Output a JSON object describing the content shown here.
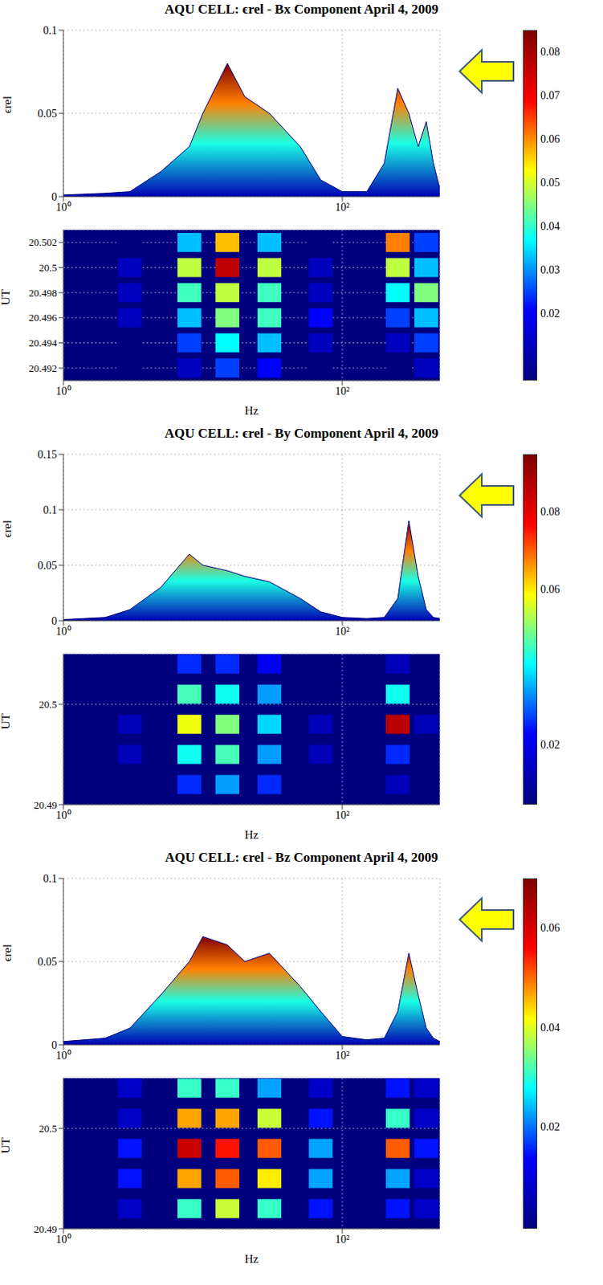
{
  "chart_data": [
    {
      "type": "area",
      "title": "AQU CELL: ϵrel - Bx Component April 4, 2009",
      "x_label": "Hz",
      "y_label": "ϵrel",
      "ut_label": "UT",
      "log": "x",
      "grid": true,
      "x": [
        1,
        2,
        3,
        5,
        8,
        10,
        15,
        20,
        30,
        50,
        70,
        100,
        150,
        200,
        250,
        300,
        350,
        400,
        450,
        500
      ],
      "values": [
        0.001,
        0.002,
        0.003,
        0.015,
        0.03,
        0.05,
        0.08,
        0.06,
        0.05,
        0.03,
        0.01,
        0.003,
        0.003,
        0.02,
        0.065,
        0.05,
        0.03,
        0.045,
        0.02,
        0.005
      ],
      "xlim": [
        1,
        500
      ],
      "xticks": [
        {
          "value": 1,
          "label": "10⁰"
        },
        {
          "value": 100,
          "label": "10²"
        }
      ],
      "ylim": [
        0,
        0.1
      ],
      "yticks": [
        0,
        0.05,
        0.1
      ],
      "hz": [
        3,
        8,
        15,
        30,
        70,
        250,
        400
      ],
      "ut": [
        20.492,
        20.494,
        20.496,
        20.498,
        20.5,
        20.502
      ],
      "cells": [
        [
          0.005,
          0.01,
          0.02,
          0.015,
          0.005,
          0.005,
          0.01
        ],
        [
          0.005,
          0.02,
          0.035,
          0.03,
          0.01,
          0.01,
          0.02
        ],
        [
          0.01,
          0.03,
          0.045,
          0.04,
          0.015,
          0.02,
          0.03
        ],
        [
          0.01,
          0.04,
          0.05,
          0.04,
          0.01,
          0.035,
          0.045
        ],
        [
          0.01,
          0.05,
          0.08,
          0.05,
          0.01,
          0.05,
          0.03
        ],
        [
          0.005,
          0.03,
          0.06,
          0.03,
          0.005,
          0.065,
          0.02
        ]
      ],
      "utlim": [
        20.491,
        20.503
      ],
      "utticks": [
        20.492,
        20.494,
        20.496,
        20.498,
        20.5,
        20.502
      ],
      "colorbar": {
        "range": [
          0.005,
          0.085
        ],
        "ticks": [
          0.02,
          0.03,
          0.04,
          0.05,
          0.06,
          0.07,
          0.08
        ]
      }
    },
    {
      "type": "area",
      "title": "AQU CELL: ϵrel - By Component April 4, 2009",
      "x_label": "Hz",
      "y_label": "ϵrel",
      "ut_label": "UT",
      "log": "x",
      "grid": true,
      "x": [
        1,
        2,
        3,
        5,
        8,
        10,
        15,
        20,
        30,
        50,
        70,
        100,
        150,
        200,
        250,
        300,
        350,
        400,
        450,
        500
      ],
      "values": [
        0.001,
        0.003,
        0.01,
        0.03,
        0.06,
        0.05,
        0.045,
        0.04,
        0.035,
        0.02,
        0.008,
        0.003,
        0.002,
        0.003,
        0.02,
        0.09,
        0.04,
        0.01,
        0.003,
        0.002
      ],
      "xlim": [
        1,
        500
      ],
      "xticks": [
        {
          "value": 1,
          "label": "10⁰"
        },
        {
          "value": 100,
          "label": "10²"
        }
      ],
      "ylim": [
        0,
        0.15
      ],
      "yticks": [
        0,
        0.05,
        0.1,
        0.15
      ],
      "hz": [
        3,
        8,
        15,
        30,
        70,
        250,
        400
      ],
      "ut": [
        20.492,
        20.495,
        20.498,
        20.501,
        20.504
      ],
      "cells": [
        [
          0.005,
          0.02,
          0.03,
          0.02,
          0.005,
          0.01,
          0.005
        ],
        [
          0.01,
          0.04,
          0.045,
          0.03,
          0.01,
          0.02,
          0.005
        ],
        [
          0.01,
          0.06,
          0.05,
          0.035,
          0.01,
          0.09,
          0.01
        ],
        [
          0.005,
          0.045,
          0.04,
          0.03,
          0.005,
          0.04,
          0.005
        ],
        [
          0.005,
          0.02,
          0.02,
          0.015,
          0.005,
          0.01,
          0.005
        ]
      ],
      "utlim": [
        20.49,
        20.505
      ],
      "utticks": [
        20.49,
        20.5
      ],
      "colorbar": {
        "range": [
          0.005,
          0.095
        ],
        "ticks": [
          0.02,
          0.06,
          0.08
        ]
      }
    },
    {
      "type": "area",
      "title": "AQU CELL: ϵrel - Bz Component April 4, 2009",
      "x_label": "Hz",
      "y_label": "ϵrel",
      "ut_label": "UT",
      "log": "x",
      "grid": true,
      "x": [
        1,
        2,
        3,
        5,
        8,
        10,
        15,
        20,
        30,
        50,
        70,
        100,
        150,
        200,
        250,
        300,
        350,
        400,
        450,
        500
      ],
      "values": [
        0.002,
        0.004,
        0.01,
        0.03,
        0.05,
        0.065,
        0.06,
        0.05,
        0.055,
        0.035,
        0.02,
        0.005,
        0.003,
        0.004,
        0.02,
        0.055,
        0.03,
        0.01,
        0.004,
        0.002
      ],
      "xlim": [
        1,
        500
      ],
      "xticks": [
        {
          "value": 1,
          "label": "10⁰"
        },
        {
          "value": 100,
          "label": "10²"
        }
      ],
      "ylim": [
        0,
        0.1
      ],
      "yticks": [
        0,
        0.05,
        0.1
      ],
      "hz": [
        3,
        8,
        15,
        30,
        70,
        250,
        400
      ],
      "ut": [
        20.492,
        20.495,
        20.498,
        20.501,
        20.504
      ],
      "cells": [
        [
          0.005,
          0.03,
          0.04,
          0.03,
          0.01,
          0.01,
          0.005
        ],
        [
          0.01,
          0.05,
          0.055,
          0.045,
          0.02,
          0.02,
          0.005
        ],
        [
          0.01,
          0.065,
          0.06,
          0.055,
          0.02,
          0.055,
          0.01
        ],
        [
          0.005,
          0.05,
          0.05,
          0.04,
          0.01,
          0.03,
          0.005
        ],
        [
          0.005,
          0.03,
          0.03,
          0.02,
          0.005,
          0.01,
          0.005
        ]
      ],
      "utlim": [
        20.49,
        20.505
      ],
      "utticks": [
        20.49,
        20.5
      ],
      "colorbar": {
        "range": [
          0,
          0.07
        ],
        "ticks": [
          0.02,
          0.04,
          0.06
        ]
      }
    }
  ]
}
